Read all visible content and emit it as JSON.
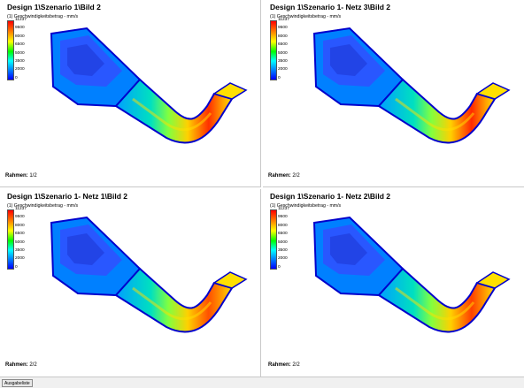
{
  "legend": {
    "title": "(1) Geschwindigkeitsbetrag - mm/s",
    "ticks": [
      "11237",
      "9500",
      "8000",
      "6500",
      "5000",
      "3500",
      "2000",
      "0"
    ]
  },
  "panels": [
    {
      "title": "Design 1\\Szenario 1\\Bild 2",
      "frame_label": "Rahmen:",
      "frame_value": "1/2",
      "hot": "#ff3000"
    },
    {
      "title": "Design 1\\Szenario 1- Netz 3\\Bild 2",
      "frame_label": "Rahmen:",
      "frame_value": "2/2",
      "hot": "#ff2800"
    },
    {
      "title": "Design 1\\Szenario 1- Netz 1\\Bild 2",
      "frame_label": "Rahmen:",
      "frame_value": "2/2",
      "hot": "#ff5000"
    },
    {
      "title": "Design 1\\Szenario 1- Netz 2\\Bild 2",
      "frame_label": "Rahmen:",
      "frame_value": "2/2",
      "hot": "#ff4000"
    }
  ],
  "status": {
    "output_button": "Ausgabeliste"
  },
  "colors": {
    "background": "#ffffff",
    "wall": "#0000cc",
    "divider": "#c8c8c8"
  }
}
